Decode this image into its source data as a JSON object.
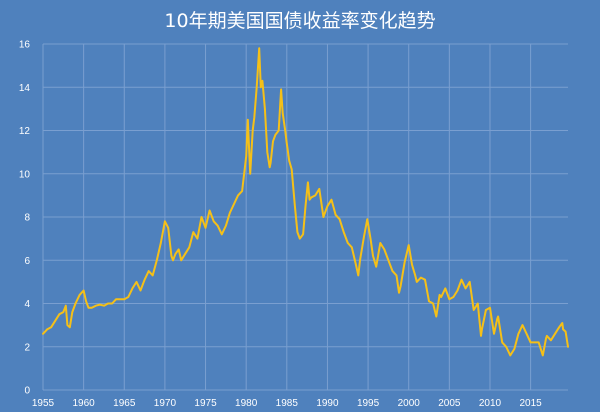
{
  "chart_data": {
    "type": "line",
    "title": "10年期美国国债收益率变化趋势",
    "xlabel": "",
    "ylabel": "",
    "xlim": [
      1955,
      2019.6
    ],
    "ylim": [
      0,
      16
    ],
    "x_ticks": [
      1955,
      1960,
      1965,
      1970,
      1975,
      1980,
      1985,
      1990,
      1995,
      2000,
      2005,
      2010,
      2015
    ],
    "y_ticks": [
      0,
      2,
      4,
      6,
      8,
      10,
      12,
      14,
      16
    ],
    "grid": true,
    "legend": "none",
    "colors": {
      "background": "#4f81bd",
      "grid": "#7a9fd0",
      "line": "#f5c018",
      "text": "#ffffff"
    },
    "series": [
      {
        "x": [
          1955.0,
          1955.5,
          1956.0,
          1956.5,
          1957.0,
          1957.5,
          1957.8,
          1958.0,
          1958.3,
          1958.6,
          1959.0,
          1959.5,
          1960.0,
          1960.3,
          1960.6,
          1961.0,
          1961.5,
          1962.0,
          1962.5,
          1963.0,
          1963.5,
          1964.0,
          1964.5,
          1965.0,
          1965.5,
          1966.0,
          1966.5,
          1967.0,
          1967.5,
          1968.0,
          1968.5,
          1969.0,
          1969.5,
          1970.0,
          1970.4,
          1970.8,
          1971.0,
          1971.3,
          1971.7,
          1972.0,
          1972.5,
          1973.0,
          1973.5,
          1974.0,
          1974.5,
          1975.0,
          1975.5,
          1976.0,
          1976.5,
          1977.0,
          1977.5,
          1978.0,
          1978.5,
          1979.0,
          1979.5,
          1980.0,
          1980.2,
          1980.5,
          1980.8,
          1981.0,
          1981.3,
          1981.6,
          1981.8,
          1982.0,
          1982.3,
          1982.6,
          1982.9,
          1983.0,
          1983.3,
          1983.6,
          1984.0,
          1984.3,
          1984.5,
          1984.8,
          1985.0,
          1985.3,
          1985.6,
          1986.0,
          1986.3,
          1986.6,
          1987.0,
          1987.3,
          1987.6,
          1987.8,
          1988.0,
          1988.5,
          1989.0,
          1989.5,
          1990.0,
          1990.5,
          1991.0,
          1991.5,
          1992.0,
          1992.5,
          1993.0,
          1993.5,
          1993.8,
          1994.0,
          1994.5,
          1994.9,
          1995.3,
          1995.6,
          1996.0,
          1996.5,
          1997.0,
          1997.5,
          1998.0,
          1998.5,
          1998.8,
          1999.0,
          1999.5,
          2000.0,
          2000.4,
          2000.8,
          2001.0,
          2001.5,
          2002.0,
          2002.5,
          2003.0,
          2003.4,
          2003.8,
          2004.0,
          2004.5,
          2005.0,
          2005.5,
          2006.0,
          2006.5,
          2007.0,
          2007.5,
          2008.0,
          2008.5,
          2008.9,
          2009.0,
          2009.5,
          2010.0,
          2010.5,
          2010.9,
          2011.0,
          2011.5,
          2012.0,
          2012.5,
          2013.0,
          2013.5,
          2014.0,
          2014.5,
          2015.0,
          2015.5,
          2016.0,
          2016.5,
          2016.9,
          2017.0,
          2017.5,
          2018.0,
          2018.5,
          2018.9,
          2019.0,
          2019.3,
          2019.6
        ],
        "values": [
          2.6,
          2.8,
          2.9,
          3.2,
          3.5,
          3.6,
          3.9,
          3.0,
          2.9,
          3.6,
          4.0,
          4.4,
          4.6,
          4.1,
          3.8,
          3.8,
          3.9,
          3.95,
          3.9,
          4.0,
          4.0,
          4.2,
          4.2,
          4.2,
          4.3,
          4.7,
          5.0,
          4.6,
          5.1,
          5.5,
          5.3,
          6.0,
          6.8,
          7.8,
          7.5,
          6.2,
          6.0,
          6.3,
          6.5,
          6.0,
          6.3,
          6.6,
          7.3,
          7.0,
          8.0,
          7.5,
          8.3,
          7.8,
          7.6,
          7.2,
          7.6,
          8.2,
          8.6,
          9.0,
          9.2,
          10.8,
          12.5,
          10.0,
          12.0,
          12.6,
          14.0,
          15.8,
          14.0,
          14.3,
          13.0,
          11.0,
          10.3,
          10.5,
          11.5,
          11.8,
          12.0,
          13.9,
          12.8,
          12.0,
          11.4,
          10.6,
          10.2,
          8.5,
          7.3,
          7.0,
          7.2,
          8.5,
          9.6,
          8.8,
          8.9,
          9.0,
          9.3,
          8.0,
          8.5,
          8.8,
          8.1,
          7.9,
          7.3,
          6.8,
          6.6,
          5.8,
          5.3,
          6.0,
          7.1,
          7.9,
          7.0,
          6.2,
          5.7,
          6.8,
          6.5,
          6.0,
          5.5,
          5.3,
          4.5,
          4.8,
          5.9,
          6.7,
          5.8,
          5.3,
          5.0,
          5.2,
          5.1,
          4.1,
          4.0,
          3.4,
          4.4,
          4.3,
          4.7,
          4.2,
          4.3,
          4.6,
          5.1,
          4.7,
          5.0,
          3.7,
          4.0,
          2.5,
          2.8,
          3.7,
          3.8,
          2.6,
          3.3,
          3.4,
          2.2,
          2.0,
          1.6,
          1.9,
          2.6,
          3.0,
          2.6,
          2.2,
          2.2,
          2.2,
          1.6,
          2.4,
          2.5,
          2.3,
          2.6,
          2.9,
          3.1,
          2.8,
          2.7,
          2.0
        ]
      }
    ]
  }
}
